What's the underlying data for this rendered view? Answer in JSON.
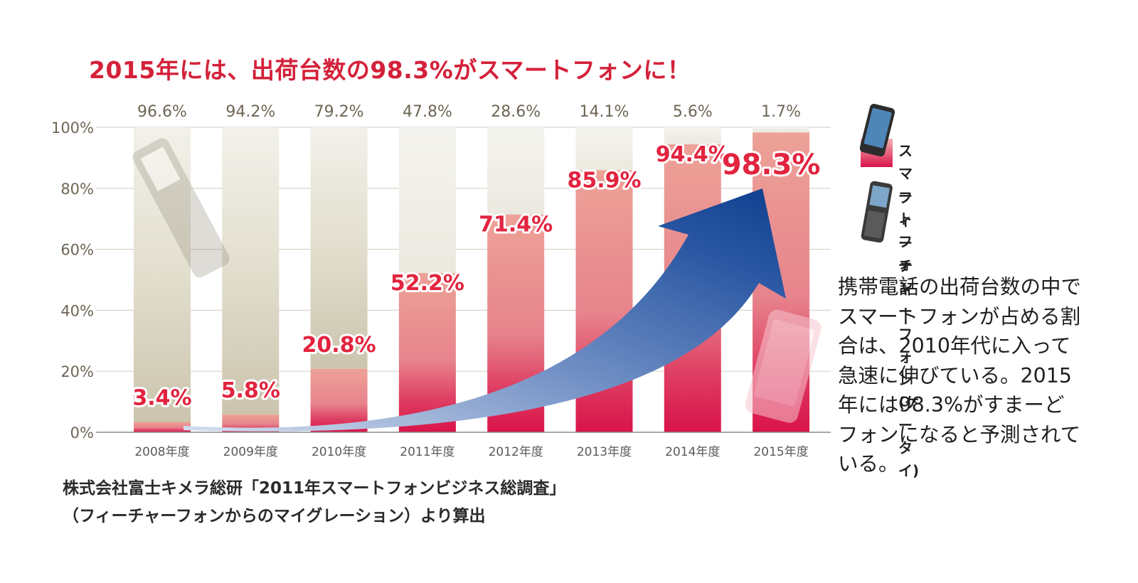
{
  "headline": "2015年には、出荷台数の98.3%がスマートフォンに！",
  "chart_data": {
    "type": "bar",
    "stacked": true,
    "categories": [
      "2008年度",
      "2009年度",
      "2010年度",
      "2011年度",
      "2012年度",
      "2013年度",
      "2014年度",
      "2015年度"
    ],
    "series": [
      {
        "name": "スマートフォン",
        "values": [
          3.4,
          5.8,
          20.8,
          52.2,
          71.4,
          85.9,
          94.4,
          98.3
        ],
        "labels": [
          "3.4%",
          "5.8%",
          "20.8%",
          "52.2%",
          "71.4%",
          "85.9%",
          "94.4%",
          "98.3%"
        ],
        "color": "#d9134a"
      },
      {
        "name": "フィーチャーフォン\n(ケータイ)",
        "values": [
          96.6,
          94.2,
          79.2,
          47.8,
          28.6,
          14.1,
          5.6,
          1.7
        ],
        "labels": [
          "96.6%",
          "94.2%",
          "79.2%",
          "47.8%",
          "28.6%",
          "14.1%",
          "5.6%",
          "1.7%"
        ],
        "color": "#f3f1e8"
      }
    ],
    "y_ticks": [
      "0%",
      "20%",
      "40%",
      "60%",
      "80%",
      "100%"
    ],
    "ylim": [
      0,
      100
    ],
    "grid": true,
    "legend_position": "right",
    "trend_arrow": true
  },
  "legend": {
    "smartphone": "スマートフォン",
    "featurephone": "フィーチャーフォン\n(ケータイ)"
  },
  "note": "携帯電話の出荷台数の中でスマートフォンが占める割合は、2010年代に入って急速に伸びている。2015年には98.3%がすまーどフォンになると予測されている。",
  "source": {
    "line1": "株式会社富士キメラ総研「2011年スマートフォンビジネス総調査」",
    "line2": "（フィーチャーフォンからのマイグレーション）より算出"
  },
  "colors": {
    "accent": "#d4213a",
    "arrow": "#1d4e9a",
    "grid": "#d8d4c8",
    "axis_text": "#6e6655"
  }
}
